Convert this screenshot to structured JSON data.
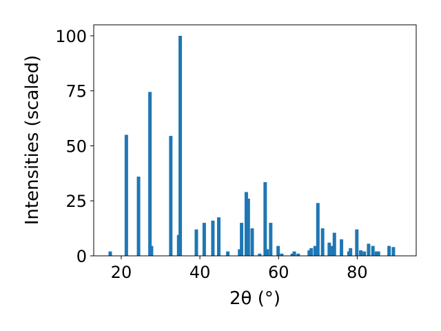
{
  "chart_data": {
    "type": "bar",
    "xlabel": "2θ (°)",
    "ylabel": "Intensities (scaled)",
    "xlim": [
      13,
      95
    ],
    "ylim": [
      0,
      105
    ],
    "xticks": [
      20,
      40,
      60,
      80
    ],
    "yticks": [
      0,
      25,
      50,
      75,
      100
    ],
    "bar_color": "#1f77b4",
    "grid": false,
    "series": [
      {
        "x": [
          17.2,
          21.3,
          24.4,
          27.3,
          27.7,
          32.6,
          34.6,
          35.0,
          39.1,
          41.1,
          43.3,
          44.8,
          47.1,
          50.1,
          50.6,
          51.8,
          52.3,
          53.3,
          55.2,
          56.6,
          57.1,
          58.0,
          59.9,
          60.8,
          63.5,
          64.0,
          65.0,
          67.8,
          68.3,
          69.3,
          70.0,
          71.2,
          72.9,
          73.4,
          74.2,
          76.0,
          77.9,
          78.3,
          79.9,
          80.9,
          81.8,
          82.9,
          84.0,
          84.9,
          85.4,
          88.1,
          89.2
        ],
        "values": [
          2.0,
          55.0,
          36.0,
          74.5,
          4.5,
          54.5,
          9.5,
          100.0,
          12.0,
          15.0,
          16.0,
          17.5,
          2.0,
          3.0,
          15.0,
          29.0,
          26.0,
          12.5,
          1.0,
          33.5,
          3.0,
          15.0,
          4.5,
          1.0,
          1.0,
          2.0,
          1.0,
          2.5,
          3.5,
          4.5,
          24.0,
          12.5,
          6.0,
          4.5,
          10.5,
          7.5,
          2.0,
          3.5,
          12.0,
          2.5,
          2.0,
          5.5,
          4.5,
          2.0,
          2.0,
          4.5,
          4.0
        ]
      }
    ]
  }
}
